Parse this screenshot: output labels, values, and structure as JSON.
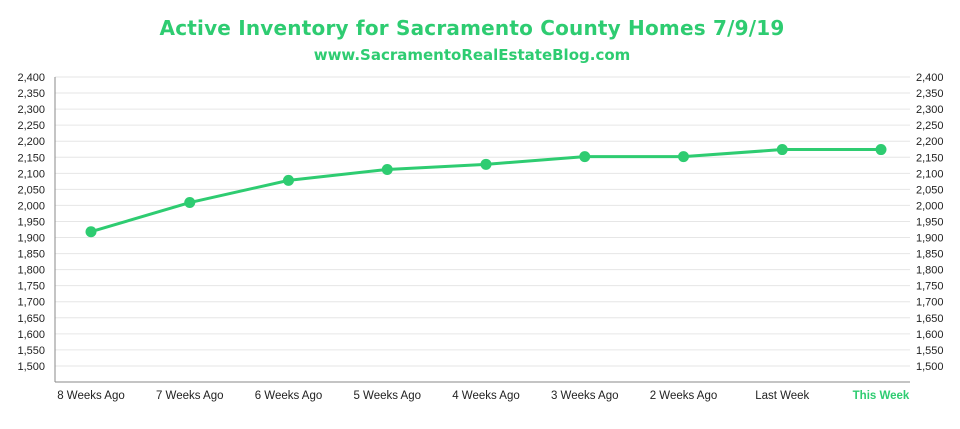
{
  "chart_data": {
    "type": "line",
    "title": "Active Inventory for Sacramento County Homes 7/9/19",
    "subtitle": "www.SacramentoRealEstateBlog.com",
    "categories": [
      "8 Weeks Ago",
      "7 Weeks Ago",
      "6 Weeks Ago",
      "5 Weeks Ago",
      "4 Weeks Ago",
      "3 Weeks Ago",
      "2 Weeks Ago",
      "Last Week",
      "This Week"
    ],
    "highlight_category": "This Week",
    "values": [
      1918,
      2009,
      2078,
      2112,
      2128,
      2152,
      2152,
      2174,
      2174
    ],
    "ylim": [
      1450,
      2400
    ],
    "yticks": [
      "1,500",
      "1,550",
      "1,600",
      "1,650",
      "1,700",
      "1,750",
      "1,800",
      "1,850",
      "1,900",
      "1,950",
      "2,000",
      "2,050",
      "2,100",
      "2,150",
      "2,200",
      "2,250",
      "2,300",
      "2,350",
      "2,400"
    ],
    "ytick_values": [
      1500,
      1550,
      1600,
      1650,
      1700,
      1750,
      1800,
      1850,
      1900,
      1950,
      2000,
      2050,
      2100,
      2150,
      2200,
      2250,
      2300,
      2350,
      2400
    ],
    "xlabel": "",
    "ylabel": "",
    "grid": true,
    "legend": "none",
    "line_color": "#2ecc71",
    "grid_color": "#e6e6e6",
    "axis_color": "#888888"
  }
}
